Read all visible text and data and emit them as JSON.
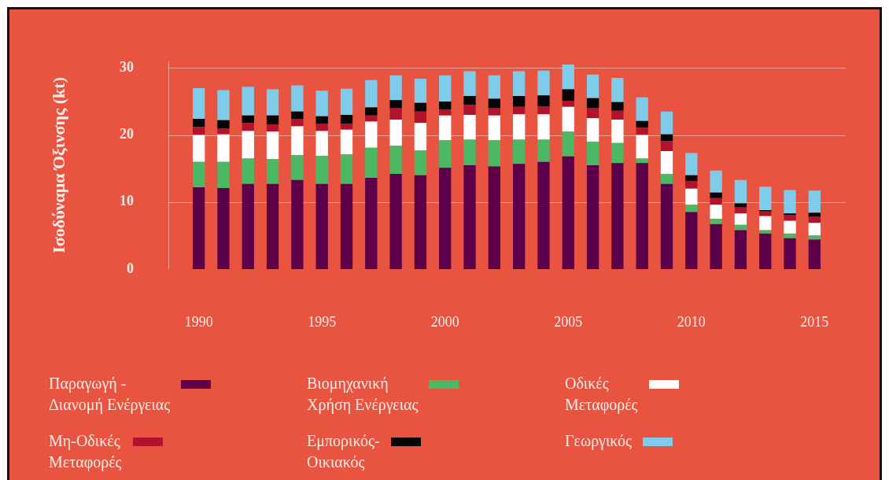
{
  "chart_data": {
    "type": "bar",
    "stacked": true,
    "ylabel": "Ισοδύναμα Όξινσης (kt)",
    "categories": [
      "1990",
      null,
      null,
      null,
      null,
      "1995",
      null,
      null,
      null,
      null,
      "2000",
      null,
      null,
      null,
      null,
      "2005",
      null,
      null,
      null,
      null,
      "2010",
      null,
      null,
      null,
      null,
      "2015"
    ],
    "series": [
      {
        "name": "Παραγωγή - Διανομή Ενέργειας",
        "color": "#5e0049",
        "values": [
          12.2,
          12.1,
          12.7,
          12.7,
          13.3,
          12.7,
          12.7,
          13.6,
          14.2,
          14.0,
          15.1,
          15.5,
          15.3,
          15.7,
          16.0,
          16.8,
          15.5,
          15.8,
          15.8,
          12.7,
          8.5,
          6.7,
          5.8,
          5.3,
          4.6,
          4.4
        ]
      },
      {
        "name": "Βιομηχανική Χρήση Ενέργειας",
        "color": "#4db864",
        "values": [
          3.8,
          3.9,
          3.8,
          3.7,
          3.7,
          4.2,
          4.4,
          4.5,
          4.2,
          3.7,
          4.1,
          3.8,
          3.9,
          3.6,
          3.3,
          3.7,
          3.5,
          3.0,
          0.7,
          1.5,
          1.1,
          0.8,
          0.8,
          0.5,
          0.7,
          0.6
        ]
      },
      {
        "name": "Οδικές Μεταφορές",
        "color": "#ffffff",
        "values": [
          4.0,
          4.1,
          4.1,
          4.1,
          4.3,
          3.7,
          3.7,
          3.9,
          3.9,
          4.1,
          3.7,
          3.7,
          3.7,
          3.8,
          3.8,
          3.7,
          3.5,
          3.5,
          3.5,
          3.4,
          2.4,
          2.1,
          1.7,
          2.1,
          1.9,
          1.9
        ]
      },
      {
        "name": "Μη-Οδικές Μεταφορές",
        "color": "#b3122c",
        "values": [
          1.2,
          0.9,
          1.2,
          1.1,
          1.1,
          1.1,
          0.9,
          0.9,
          1.7,
          1.7,
          0.9,
          1.5,
          1.1,
          1.1,
          1.2,
          0.9,
          1.5,
          1.3,
          1.1,
          1.5,
          1.1,
          1.0,
          0.9,
          0.7,
          0.9,
          0.9
        ]
      },
      {
        "name": "Εμπορικός-Οικιακός",
        "color": "#050505",
        "values": [
          1.2,
          1.2,
          1.1,
          1.3,
          1.1,
          1.1,
          1.3,
          1.2,
          1.2,
          1.3,
          1.2,
          1.3,
          1.4,
          1.6,
          1.6,
          1.7,
          1.5,
          1.3,
          1.0,
          1.0,
          0.9,
          0.8,
          0.6,
          0.2,
          0.2,
          0.6
        ]
      },
      {
        "name": "Γεωργικός",
        "color": "#7ecbea",
        "values": [
          4.6,
          4.5,
          4.3,
          3.9,
          3.9,
          3.8,
          3.9,
          4.1,
          3.7,
          3.6,
          3.9,
          3.7,
          3.5,
          3.7,
          3.7,
          3.7,
          3.5,
          3.6,
          3.5,
          3.4,
          3.3,
          3.3,
          3.5,
          3.5,
          3.5,
          3.3
        ]
      }
    ],
    "ylim": [
      0,
      31
    ],
    "yticks": [
      0,
      10,
      20,
      30
    ],
    "grid": "y",
    "legend": "bottom"
  }
}
